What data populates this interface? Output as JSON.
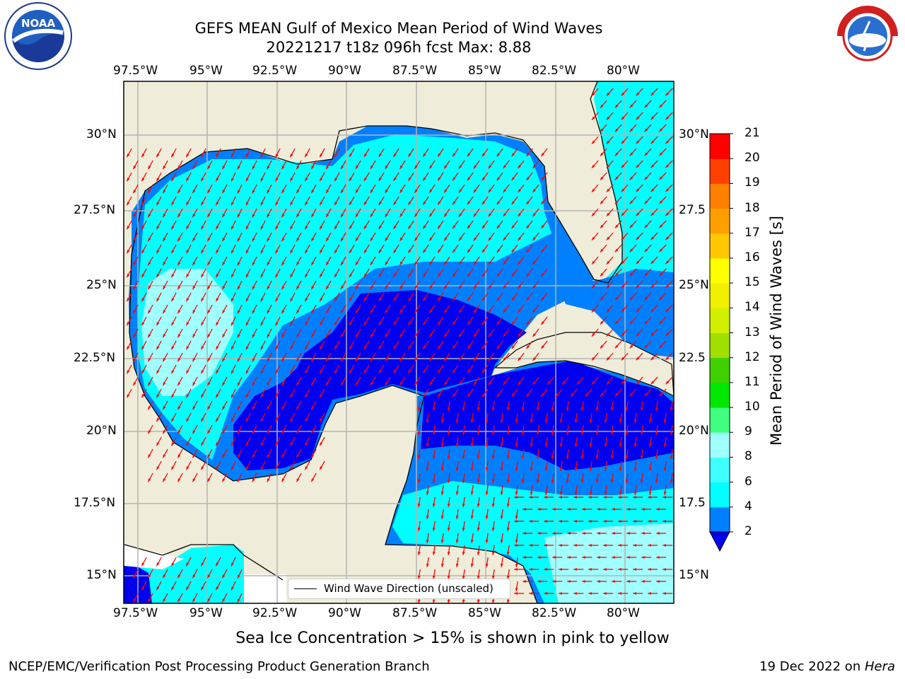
{
  "header": {
    "title_line1": "GEFS MEAN Gulf of Mexico Mean Period of Wind Waves",
    "title_line2": "20221217 t18z 096h fcst   Max: 8.88"
  },
  "logos": {
    "left": {
      "name": "noaa-logo",
      "text": "NOAA",
      "ring_text": "NATIONAL OCEANIC AND ATMOSPHERIC ADMINISTRATION · U.S. DEPARTMENT OF COMMERCE"
    },
    "right": {
      "name": "nws-logo",
      "ring_text": "NATIONAL WEATHER SERVICE"
    }
  },
  "map": {
    "lon_labels": [
      "97.5°W",
      "95°W",
      "92.5°W",
      "90°W",
      "87.5°W",
      "85°W",
      "82.5°W",
      "80°W"
    ],
    "lat_labels": [
      "30°N",
      "27.5°N",
      "25°N",
      "22.5°N",
      "20°N",
      "17.5°N",
      "15°N"
    ],
    "right_lat_labels": [
      "30°N",
      "27.5",
      "25°N",
      "22.5",
      "20°N",
      "17.5",
      "15°N"
    ],
    "legend_label": "Wind Wave Direction (unscaled)",
    "colors": {
      "land": "#efedd9",
      "coast": "#000000",
      "grid": "#b4b4b4",
      "arrow": "#ff0000"
    }
  },
  "colorbar": {
    "label": "Mean Period of Wind Waves [s]",
    "ticks": [
      "2",
      "4",
      "6",
      "8",
      "9",
      "10",
      "11",
      "12",
      "13",
      "14",
      "15",
      "16",
      "17",
      "18",
      "19",
      "20",
      "21"
    ],
    "colors": [
      "#0000f0",
      "#0080ff",
      "#00ffff",
      "#40ffff",
      "#a0ffff",
      "#40ff80",
      "#00e800",
      "#40d000",
      "#a0e000",
      "#d0f000",
      "#f0f000",
      "#ffff00",
      "#ffc800",
      "#ffa000",
      "#ff8000",
      "#ff4000",
      "#ff0000"
    ]
  },
  "caption": "Sea Ice Concentration > 15% is shown in pink to yellow",
  "footer": {
    "left": "NCEP/EMC/Verification Post Processing Product Generation Branch",
    "right_date": "19 Dec 2022 on ",
    "right_host": "Hera"
  }
}
